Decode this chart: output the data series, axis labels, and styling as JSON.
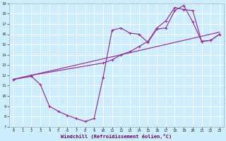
{
  "xlabel": "Windchill (Refroidissement éolien,°C)",
  "bg_color": "#cceeff",
  "line_color": "#993399",
  "grid_color": "#ffffff",
  "xmin": -0.5,
  "xmax": 23.5,
  "ymin": 7,
  "ymax": 19,
  "xticks": [
    0,
    1,
    2,
    3,
    4,
    5,
    6,
    7,
    8,
    9,
    10,
    11,
    12,
    13,
    14,
    15,
    16,
    17,
    18,
    19,
    20,
    21,
    22,
    23
  ],
  "yticks": [
    7,
    8,
    9,
    10,
    11,
    12,
    13,
    14,
    15,
    16,
    17,
    18,
    19
  ],
  "line1_x": [
    0,
    23
  ],
  "line1_y": [
    11.6,
    16.2
  ],
  "line2_x": [
    0,
    2,
    3,
    4,
    5,
    6,
    7,
    8,
    9,
    10,
    11,
    12,
    13,
    14,
    15,
    16,
    17,
    18,
    19,
    20,
    21,
    22,
    23
  ],
  "line2_y": [
    11.6,
    11.9,
    11.1,
    9.0,
    8.5,
    8.1,
    7.8,
    7.5,
    7.8,
    11.8,
    16.4,
    16.6,
    16.1,
    16.0,
    15.2,
    16.5,
    16.6,
    18.3,
    18.8,
    17.2,
    15.3,
    15.4,
    16.0
  ],
  "line3_x": [
    0,
    2,
    10,
    11,
    12,
    13,
    14,
    15,
    16,
    17,
    18,
    19,
    20,
    21,
    22,
    23
  ],
  "line3_y": [
    11.6,
    12.0,
    13.2,
    13.5,
    14.0,
    14.3,
    14.8,
    15.3,
    16.6,
    17.3,
    18.6,
    18.4,
    18.3,
    15.3,
    15.4,
    16.0
  ]
}
